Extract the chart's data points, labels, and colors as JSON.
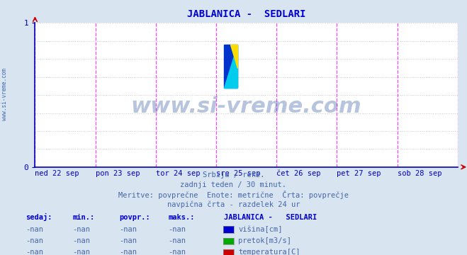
{
  "title": "JABLANICA -  SEDLARI",
  "title_color": "#0000cc",
  "bg_color": "#d8e4f0",
  "plot_bg_color": "#ffffff",
  "x_tick_labels": [
    "ned 22 sep",
    "pon 23 sep",
    "tor 24 sep",
    "sre 25 sep",
    "čet 26 sep",
    "pet 27 sep",
    "sob 28 sep"
  ],
  "x_tick_positions": [
    0,
    1,
    2,
    3,
    4,
    5,
    6
  ],
  "ylim": [
    0,
    1
  ],
  "yticks": [
    0,
    1
  ],
  "grid_color": "#cccccc",
  "axis_color": "#0000bb",
  "vline_color_magenta": "#ff44ff",
  "watermark_text": "www.si-vreme.com",
  "watermark_color": "#4466aa",
  "sidebar_text": "www.si-vreme.com",
  "sidebar_color": "#4466aa",
  "info_line1": "Srbija / reke.",
  "info_line2": "zadnji teden / 30 minut.",
  "info_line3": "Meritve: povprečne  Enote: metrične  Črta: povprečje",
  "info_line4": "navpična črta - razdelek 24 ur",
  "info_color": "#4466aa",
  "table_header": [
    "sedaj:",
    "min.:",
    "povpr.:",
    "maks.:",
    "JABLANICA -   SEDLARI"
  ],
  "table_header_color": "#0000cc",
  "table_rows": [
    [
      "-nan",
      "-nan",
      "-nan",
      "-nan",
      "višina[cm]",
      "#0000cc"
    ],
    [
      "-nan",
      "-nan",
      "-nan",
      "-nan",
      "pretok[m3/s]",
      "#00aa00"
    ],
    [
      "-nan",
      "-nan",
      "-nan",
      "-nan",
      "temperatura[C]",
      "#cc0000"
    ]
  ],
  "table_color": "#4466aa",
  "legend_colors": [
    "#0000cc",
    "#00aa00",
    "#cc0000"
  ],
  "legend_labels": [
    "višina[cm]",
    "pretok[m3/s]",
    "temperatura[C]"
  ],
  "vlines_magenta": [
    0,
    1,
    2,
    3,
    4,
    5,
    6
  ],
  "logo_colors": {
    "blue": "#0033cc",
    "cyan": "#00ccee",
    "yellow": "#ffdd00"
  }
}
